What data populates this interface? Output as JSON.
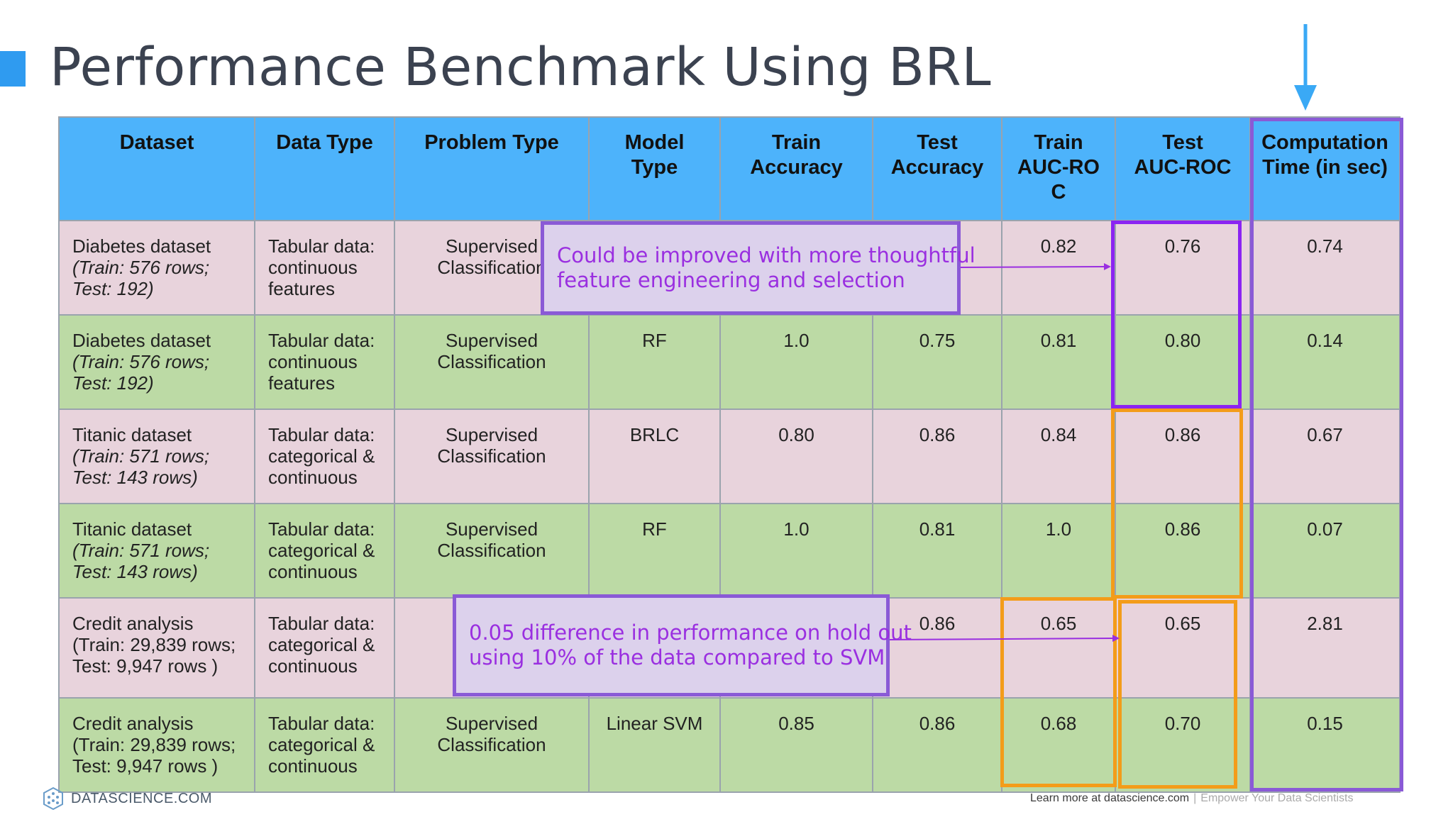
{
  "slide": {
    "title": "Performance Benchmark Using BRL"
  },
  "table": {
    "headers": [
      {
        "lines": [
          "Dataset"
        ]
      },
      {
        "lines": [
          "Data Type"
        ]
      },
      {
        "lines": [
          "Problem Type"
        ]
      },
      {
        "lines": [
          "Model",
          "Type"
        ]
      },
      {
        "lines": [
          "Train",
          "Accuracy"
        ]
      },
      {
        "lines": [
          "Test",
          "Accuracy"
        ]
      },
      {
        "lines": [
          "Train",
          "AUC-RO",
          "C"
        ]
      },
      {
        "lines": [
          "Test",
          "AUC-ROC"
        ]
      },
      {
        "lines": [
          "Computation",
          "Time (in sec)"
        ]
      }
    ],
    "rows": [
      {
        "dataset_name": "Diabetes dataset",
        "dataset_detail_1": "(Train: 576 rows;",
        "dataset_detail_2": "Test: 192)",
        "data_type": [
          "Tabular data:",
          "continuous",
          "features"
        ],
        "problem_type": [
          "Supervised",
          "Classification"
        ],
        "model_type": "",
        "train_accuracy": "",
        "test_accuracy": "",
        "train_auc_roc": "0.82",
        "test_auc_roc": "0.76",
        "computation_time": "0.74"
      },
      {
        "dataset_name": "Diabetes dataset",
        "dataset_detail_1": "(Train: 576 rows;",
        "dataset_detail_2": "Test: 192)",
        "data_type": [
          "Tabular data:",
          "continuous",
          "features"
        ],
        "problem_type": [
          "Supervised",
          "Classification"
        ],
        "model_type": "RF",
        "train_accuracy": "1.0",
        "test_accuracy": "0.75",
        "train_auc_roc": "0.81",
        "test_auc_roc": "0.80",
        "computation_time": "0.14"
      },
      {
        "dataset_name": "Titanic dataset",
        "dataset_detail_1": "(Train: 571 rows;",
        "dataset_detail_2": "Test: 143 rows)",
        "data_type": [
          "Tabular data:",
          "categorical &",
          "continuous"
        ],
        "problem_type": [
          "Supervised",
          "Classification"
        ],
        "model_type": "BRLC",
        "train_accuracy": "0.80",
        "test_accuracy": "0.86",
        "train_auc_roc": "0.84",
        "test_auc_roc": "0.86",
        "computation_time": "0.67"
      },
      {
        "dataset_name": "Titanic dataset",
        "dataset_detail_1": "(Train: 571 rows;",
        "dataset_detail_2": "Test: 143 rows)",
        "data_type": [
          "Tabular data:",
          "categorical &",
          "continuous"
        ],
        "problem_type": [
          "Supervised",
          "Classification"
        ],
        "model_type": "RF",
        "train_accuracy": "1.0",
        "test_accuracy": "0.81",
        "train_auc_roc": "1.0",
        "test_auc_roc": "0.86",
        "computation_time": "0.07"
      },
      {
        "dataset_name": "Credit analysis",
        "dataset_detail_1": "(Train: 29,839 rows;",
        "dataset_detail_2": "Test: 9,947 rows )",
        "data_type": [
          "Tabular data:",
          "categorical &",
          "continuous"
        ],
        "problem_type": [
          "S",
          "C"
        ],
        "model_type": "",
        "train_accuracy": "",
        "test_accuracy": "0.86",
        "train_auc_roc": "0.65",
        "test_auc_roc": "0.65",
        "computation_time": "2.81"
      },
      {
        "dataset_name": "Credit analysis",
        "dataset_detail_1": "(Train: 29,839 rows;",
        "dataset_detail_2": "Test: 9,947 rows )",
        "data_type": [
          "Tabular data:",
          "categorical &",
          "continuous"
        ],
        "problem_type": [
          "Supervised",
          "Classification"
        ],
        "model_type": "Linear SVM",
        "train_accuracy": "0.85",
        "test_accuracy": "0.86",
        "train_auc_roc": "0.68",
        "test_auc_roc": "0.70",
        "computation_time": "0.15"
      }
    ]
  },
  "callouts": {
    "diabetes": [
      "Could be improved with more thoughtful",
      "feature engineering and selection"
    ],
    "credit": [
      "0.05 difference in performance on hold out",
      "using 10% of the data compared to SVM"
    ]
  },
  "footer": {
    "logo_text": "DATASCIENCE.COM",
    "learn_more": "Learn more at datascience.com",
    "separator": "|",
    "tagline": "Empower Your Data Scientists"
  },
  "colors": {
    "header_blue": "#4db3fb",
    "row_pink": "#e8d3dc",
    "row_green": "#bcdaa5",
    "highlight_purple": "#8b24f2",
    "highlight_orange": "#f39c1a",
    "callout_border": "#8a5ad6",
    "callout_text": "#9a2fe0",
    "arrow_blue": "#3aa9f5"
  },
  "icons": {
    "accent": "accent-square-icon",
    "arrow": "down-arrow-icon",
    "logo": "datascience-logo-icon"
  }
}
